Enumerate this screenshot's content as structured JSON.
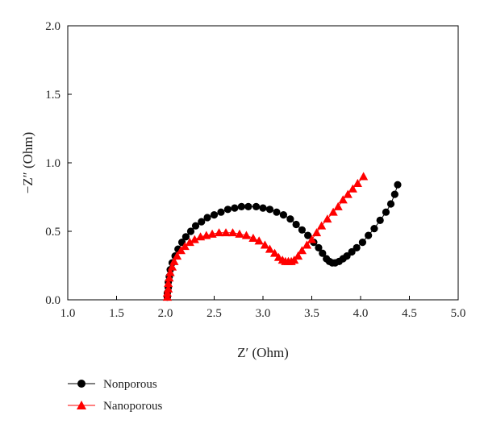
{
  "chart_data": {
    "type": "scatter",
    "xlabel": "Z′ (Ohm)",
    "ylabel": "−Z″ (Ohm)",
    "xlim": [
      1.0,
      5.0
    ],
    "ylim": [
      0.0,
      2.0
    ],
    "xticks": [
      "1.0",
      "1.5",
      "2.0",
      "2.5",
      "3.0",
      "3.5",
      "4.0",
      "4.5",
      "5.0"
    ],
    "yticks": [
      "0.0",
      "0.5",
      "1.0",
      "1.5",
      "2.0"
    ],
    "grid": false,
    "legend_position": "bottom-left, below plot",
    "series": [
      {
        "name": "Nonporous",
        "marker": "circle",
        "color": "#000000",
        "x": [
          2.02,
          2.02,
          2.03,
          2.03,
          2.04,
          2.05,
          2.07,
          2.1,
          2.13,
          2.17,
          2.21,
          2.26,
          2.31,
          2.37,
          2.43,
          2.5,
          2.57,
          2.64,
          2.71,
          2.78,
          2.85,
          2.93,
          3.0,
          3.07,
          3.14,
          3.21,
          3.28,
          3.34,
          3.4,
          3.46,
          3.52,
          3.57,
          3.61,
          3.65,
          3.68,
          3.71,
          3.74,
          3.78,
          3.82,
          3.86,
          3.91,
          3.96,
          4.02,
          4.08,
          4.14,
          4.2,
          4.26,
          4.31,
          4.35,
          4.38
        ],
        "y": [
          0.02,
          0.05,
          0.09,
          0.13,
          0.17,
          0.22,
          0.27,
          0.32,
          0.37,
          0.42,
          0.46,
          0.5,
          0.54,
          0.57,
          0.6,
          0.62,
          0.64,
          0.66,
          0.67,
          0.68,
          0.68,
          0.68,
          0.67,
          0.66,
          0.64,
          0.62,
          0.59,
          0.55,
          0.51,
          0.47,
          0.42,
          0.38,
          0.34,
          0.3,
          0.28,
          0.27,
          0.27,
          0.28,
          0.3,
          0.32,
          0.35,
          0.38,
          0.42,
          0.47,
          0.52,
          0.58,
          0.64,
          0.7,
          0.77,
          0.84
        ]
      },
      {
        "name": "Nanoporous",
        "marker": "triangle",
        "color": "#ff0000",
        "x": [
          2.02,
          2.02,
          2.03,
          2.03,
          2.04,
          2.05,
          2.07,
          2.09,
          2.12,
          2.16,
          2.2,
          2.25,
          2.3,
          2.36,
          2.42,
          2.48,
          2.55,
          2.62,
          2.69,
          2.76,
          2.83,
          2.9,
          2.96,
          3.02,
          3.07,
          3.12,
          3.16,
          3.2,
          3.23,
          3.26,
          3.29,
          3.32,
          3.36,
          3.4,
          3.45,
          3.5,
          3.55,
          3.6,
          3.66,
          3.72,
          3.77,
          3.82,
          3.87,
          3.92,
          3.97,
          4.03
        ],
        "y": [
          0.02,
          0.05,
          0.08,
          0.12,
          0.16,
          0.2,
          0.24,
          0.28,
          0.32,
          0.36,
          0.39,
          0.42,
          0.44,
          0.46,
          0.47,
          0.48,
          0.49,
          0.49,
          0.49,
          0.48,
          0.47,
          0.45,
          0.43,
          0.4,
          0.37,
          0.34,
          0.31,
          0.29,
          0.28,
          0.28,
          0.28,
          0.29,
          0.32,
          0.36,
          0.4,
          0.44,
          0.49,
          0.54,
          0.59,
          0.64,
          0.68,
          0.73,
          0.77,
          0.81,
          0.85,
          0.9
        ]
      }
    ]
  }
}
